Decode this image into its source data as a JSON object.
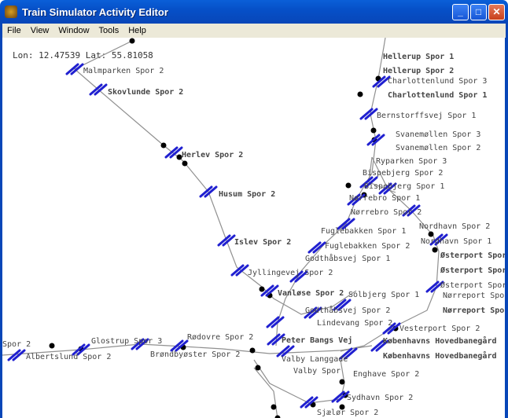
{
  "window": {
    "title": "Train Simulator Activity Editor",
    "icon": "train-app-icon",
    "buttons": [
      "minimize",
      "maximize",
      "close"
    ]
  },
  "menu": [
    "File",
    "View",
    "Window",
    "Tools",
    "Help"
  ],
  "status": {
    "coords": "Lon: 12.47539 Lat: 55.81058"
  },
  "colors": {
    "track": "#909090",
    "marker": "#2020d0",
    "node": "#000000",
    "titlebar": "#0650c8"
  },
  "stations": [
    "Malmparken Spor 2",
    "Skovlunde Spor 2",
    "Herlev Spor 2",
    "Husum Spor 2",
    "Islev Spor 2",
    "Jyllingevej Spor 2",
    "Vanløse Spor 2",
    "Godthåbsvej Spor 1",
    "Godthåbsvej Spor 2",
    "Fuglebakken Spor 2",
    "Fuglebakken Spor 1",
    "Nørrebro Spor 2",
    "Nørrebro Spor 1",
    "Bispebjerg Spor 1",
    "Bispebjerg Spor 2",
    "Ryparken Spor 3",
    "Svanemøllen Spor 2",
    "Svanemøllen Spor 3",
    "Nordhavn Spor 2",
    "Nordhavn Spor 1",
    "Charlottenlund Spor 3",
    "Charlottenlund Spor 1",
    "Bernstorffsvej Spor 1",
    "Hellerup Spor 2",
    "Hellerup Spor 1",
    "Østerport Spor",
    "Østerport Spor",
    "Østerport Spor",
    "Nørreport Spor",
    "Nørreport Spor",
    "Solbjerg Spor 1",
    "Lindevang Spor 2",
    "Peter Bangs Vej",
    "Valby Langgade",
    "Vesterport Spor 2",
    "Københavns Hovedbanegård",
    "Københavns Hovedbanegård",
    "Sydhavn Spor 2",
    "Sjælør Spor 2",
    "Albertslund Spor 2",
    "Glostrup Spor 3",
    "Brøndbyøster Spor 2",
    "Rødovre Spor 2",
    "Valby Spor",
    "Enghave Spor 2",
    "Spor 2"
  ]
}
